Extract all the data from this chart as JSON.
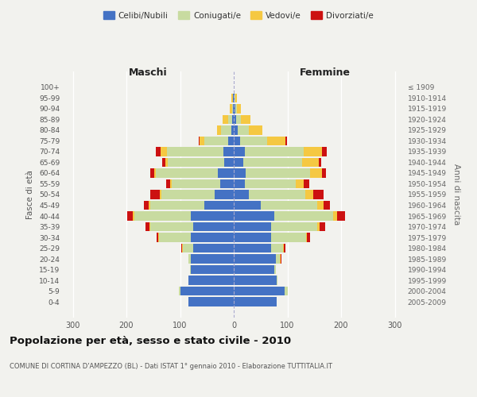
{
  "age_groups": [
    "0-4",
    "5-9",
    "10-14",
    "15-19",
    "20-24",
    "25-29",
    "30-34",
    "35-39",
    "40-44",
    "45-49",
    "50-54",
    "55-59",
    "60-64",
    "65-69",
    "70-74",
    "75-79",
    "80-84",
    "85-89",
    "90-94",
    "95-99",
    "100+"
  ],
  "birth_years": [
    "2005-2009",
    "2000-2004",
    "1995-1999",
    "1990-1994",
    "1985-1989",
    "1980-1984",
    "1975-1979",
    "1970-1974",
    "1965-1969",
    "1960-1964",
    "1955-1959",
    "1950-1954",
    "1945-1949",
    "1940-1944",
    "1935-1939",
    "1930-1934",
    "1925-1929",
    "1920-1924",
    "1915-1919",
    "1910-1914",
    "≤ 1909"
  ],
  "male_celibe": [
    85,
    100,
    85,
    80,
    80,
    75,
    80,
    75,
    80,
    55,
    35,
    25,
    30,
    18,
    20,
    10,
    5,
    3,
    1,
    1,
    0
  ],
  "male_coniugato": [
    0,
    2,
    0,
    2,
    5,
    20,
    60,
    80,
    105,
    100,
    100,
    90,
    115,
    105,
    105,
    45,
    18,
    8,
    2,
    1,
    0
  ],
  "male_vedovo": [
    0,
    0,
    0,
    0,
    0,
    1,
    1,
    2,
    3,
    3,
    3,
    3,
    3,
    5,
    12,
    8,
    8,
    10,
    4,
    2,
    0
  ],
  "male_divorziato": [
    0,
    0,
    0,
    0,
    0,
    2,
    3,
    8,
    10,
    10,
    18,
    8,
    8,
    5,
    8,
    2,
    0,
    0,
    0,
    0,
    0
  ],
  "female_celibe": [
    80,
    95,
    80,
    75,
    78,
    70,
    70,
    70,
    75,
    50,
    28,
    20,
    22,
    18,
    20,
    12,
    8,
    5,
    3,
    2,
    0
  ],
  "female_coniugata": [
    0,
    5,
    2,
    3,
    8,
    22,
    65,
    85,
    110,
    105,
    105,
    95,
    120,
    110,
    110,
    50,
    20,
    8,
    3,
    1,
    0
  ],
  "female_vedova": [
    0,
    0,
    0,
    0,
    1,
    1,
    2,
    5,
    8,
    12,
    15,
    15,
    22,
    30,
    35,
    35,
    25,
    18,
    8,
    3,
    0
  ],
  "female_divorziata": [
    0,
    0,
    0,
    0,
    2,
    3,
    5,
    10,
    15,
    12,
    20,
    10,
    8,
    5,
    8,
    2,
    0,
    0,
    0,
    0,
    0
  ],
  "colors": {
    "celibe": "#4472c4",
    "coniugato": "#c8dba0",
    "vedovo": "#f5c842",
    "divorziato": "#cc1111"
  },
  "title": "Popolazione per età, sesso e stato civile - 2010",
  "subtitle": "COMUNE DI CORTINA D'AMPEZZO (BL) - Dati ISTAT 1° gennaio 2010 - Elaborazione TUTTITALIA.IT",
  "xlabel_left": "Maschi",
  "xlabel_right": "Femmine",
  "ylabel_left": "Fasce di età",
  "ylabel_right": "Anni di nascita",
  "xlim": 320,
  "background_color": "#f2f2ee"
}
